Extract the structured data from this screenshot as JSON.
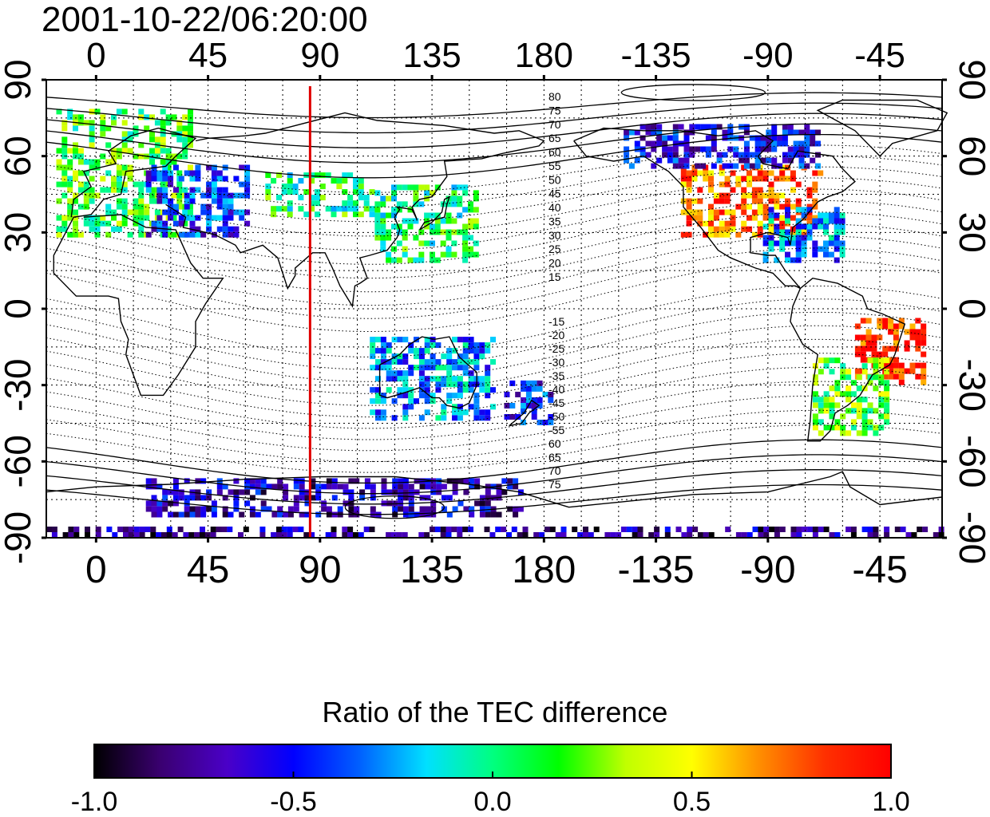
{
  "title": "2001-10-22/06:20:00",
  "map": {
    "lon_ticks_top": [
      "0",
      "45",
      "90",
      "135",
      "180",
      "-135",
      "-90",
      "-45"
    ],
    "lon_ticks_bottom": [
      "0",
      "45",
      "90",
      "135",
      "180",
      "-135",
      "-90",
      "-45"
    ],
    "lat_ticks_left": [
      "90",
      "60",
      "30",
      "0",
      "-30",
      "-60",
      "-90"
    ],
    "lat_ticks_right": [
      "90",
      "60",
      "30",
      "0",
      "-30",
      "-60",
      "-90"
    ],
    "lon_range": [
      -20,
      340
    ],
    "lat_range": [
      -90,
      90
    ],
    "marker_meridian_lon": 86,
    "marker_color": "#e00000",
    "contour_labels_north": [
      "80",
      "75",
      "70",
      "65",
      "60",
      "55",
      "50",
      "45",
      "40",
      "35",
      "30",
      "25",
      "20",
      "15"
    ],
    "contour_labels_south": [
      "-15",
      "-20",
      "-25",
      "-30",
      "-35",
      "-40",
      "-45",
      "-50",
      "-55",
      "60",
      "65",
      "70",
      "75"
    ]
  },
  "colorbar": {
    "title": "Ratio of the TEC difference",
    "min": -1.0,
    "max": 1.0,
    "tick_labels": [
      "-1.0",
      "-0.5",
      "0.0",
      "0.5",
      "1.0"
    ],
    "colors": [
      "#000000",
      "#3a0070",
      "#4a00c8",
      "#0000ff",
      "#0060ff",
      "#00e0ff",
      "#00ff80",
      "#00ff00",
      "#c0ff00",
      "#ffff00",
      "#ff9000",
      "#ff3000",
      "#ff0000"
    ]
  },
  "regions": [
    {
      "name": "europe",
      "lon": [
        -16,
        38
      ],
      "lat": [
        28,
        78
      ],
      "value": 0.15
    },
    {
      "name": "eastern-europe",
      "lon": [
        20,
        60
      ],
      "lat": [
        28,
        55
      ],
      "value": -0.45
    },
    {
      "name": "central-asia",
      "lon": [
        68,
        110
      ],
      "lat": [
        36,
        52
      ],
      "value": 0.05
    },
    {
      "name": "east-asia",
      "lon": [
        112,
        152
      ],
      "lat": [
        18,
        48
      ],
      "value": 0.05
    },
    {
      "name": "north-america",
      "lon": [
        235,
        290
      ],
      "lat": [
        28,
        55
      ],
      "value": 0.75
    },
    {
      "name": "canada",
      "lon": [
        212,
        290
      ],
      "lat": [
        55,
        72
      ],
      "value": -0.55
    },
    {
      "name": "eastern-us",
      "lon": [
        268,
        300
      ],
      "lat": [
        18,
        40
      ],
      "value": -0.3
    },
    {
      "name": "south-america-east",
      "lon": [
        305,
        333
      ],
      "lat": [
        -30,
        -5
      ],
      "value": 0.9
    },
    {
      "name": "south-america-south",
      "lon": [
        288,
        318
      ],
      "lat": [
        -50,
        -20
      ],
      "value": 0.2
    },
    {
      "name": "australia",
      "lon": [
        110,
        160
      ],
      "lat": [
        -44,
        -12
      ],
      "value": -0.3
    },
    {
      "name": "new-zealand",
      "lon": [
        164,
        182
      ],
      "lat": [
        -48,
        -30
      ],
      "value": -0.5
    },
    {
      "name": "antarctica-coast",
      "lon": [
        20,
        170
      ],
      "lat": [
        -82,
        -68
      ],
      "value": -0.65
    },
    {
      "name": "antarctica-deep",
      "lon": [
        -20,
        340
      ],
      "lat": [
        -90,
        -86
      ],
      "value": -0.75
    }
  ]
}
